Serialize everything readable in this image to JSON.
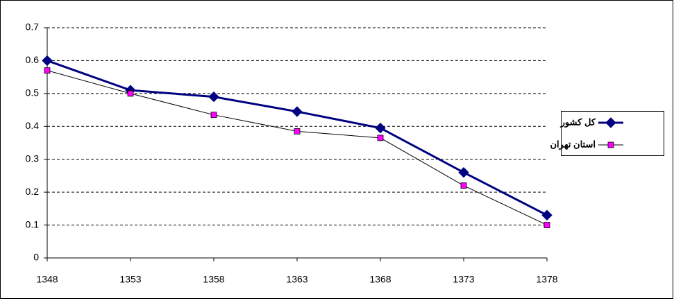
{
  "chart_data": {
    "type": "line",
    "categories": [
      "1348",
      "1353",
      "1358",
      "1363",
      "1368",
      "1373",
      "1378"
    ],
    "series": [
      {
        "name": "کل کشور",
        "color": "#000080",
        "marker_color": "#000080",
        "marker": "diamond",
        "line_width": 3,
        "values": [
          0.6,
          0.51,
          0.49,
          0.445,
          0.395,
          0.26,
          0.13
        ]
      },
      {
        "name": "استان تهران",
        "color": "#000000",
        "marker_color": "#ff00ff",
        "marker": "square",
        "line_width": 1,
        "values": [
          0.57,
          0.5,
          0.435,
          0.385,
          0.365,
          0.22,
          0.1
        ]
      }
    ],
    "ylim": [
      0,
      0.7
    ],
    "yticks": [
      0,
      0.1,
      0.2,
      0.3,
      0.4,
      0.5,
      0.6,
      0.7
    ],
    "grid": true,
    "legend": "right"
  }
}
